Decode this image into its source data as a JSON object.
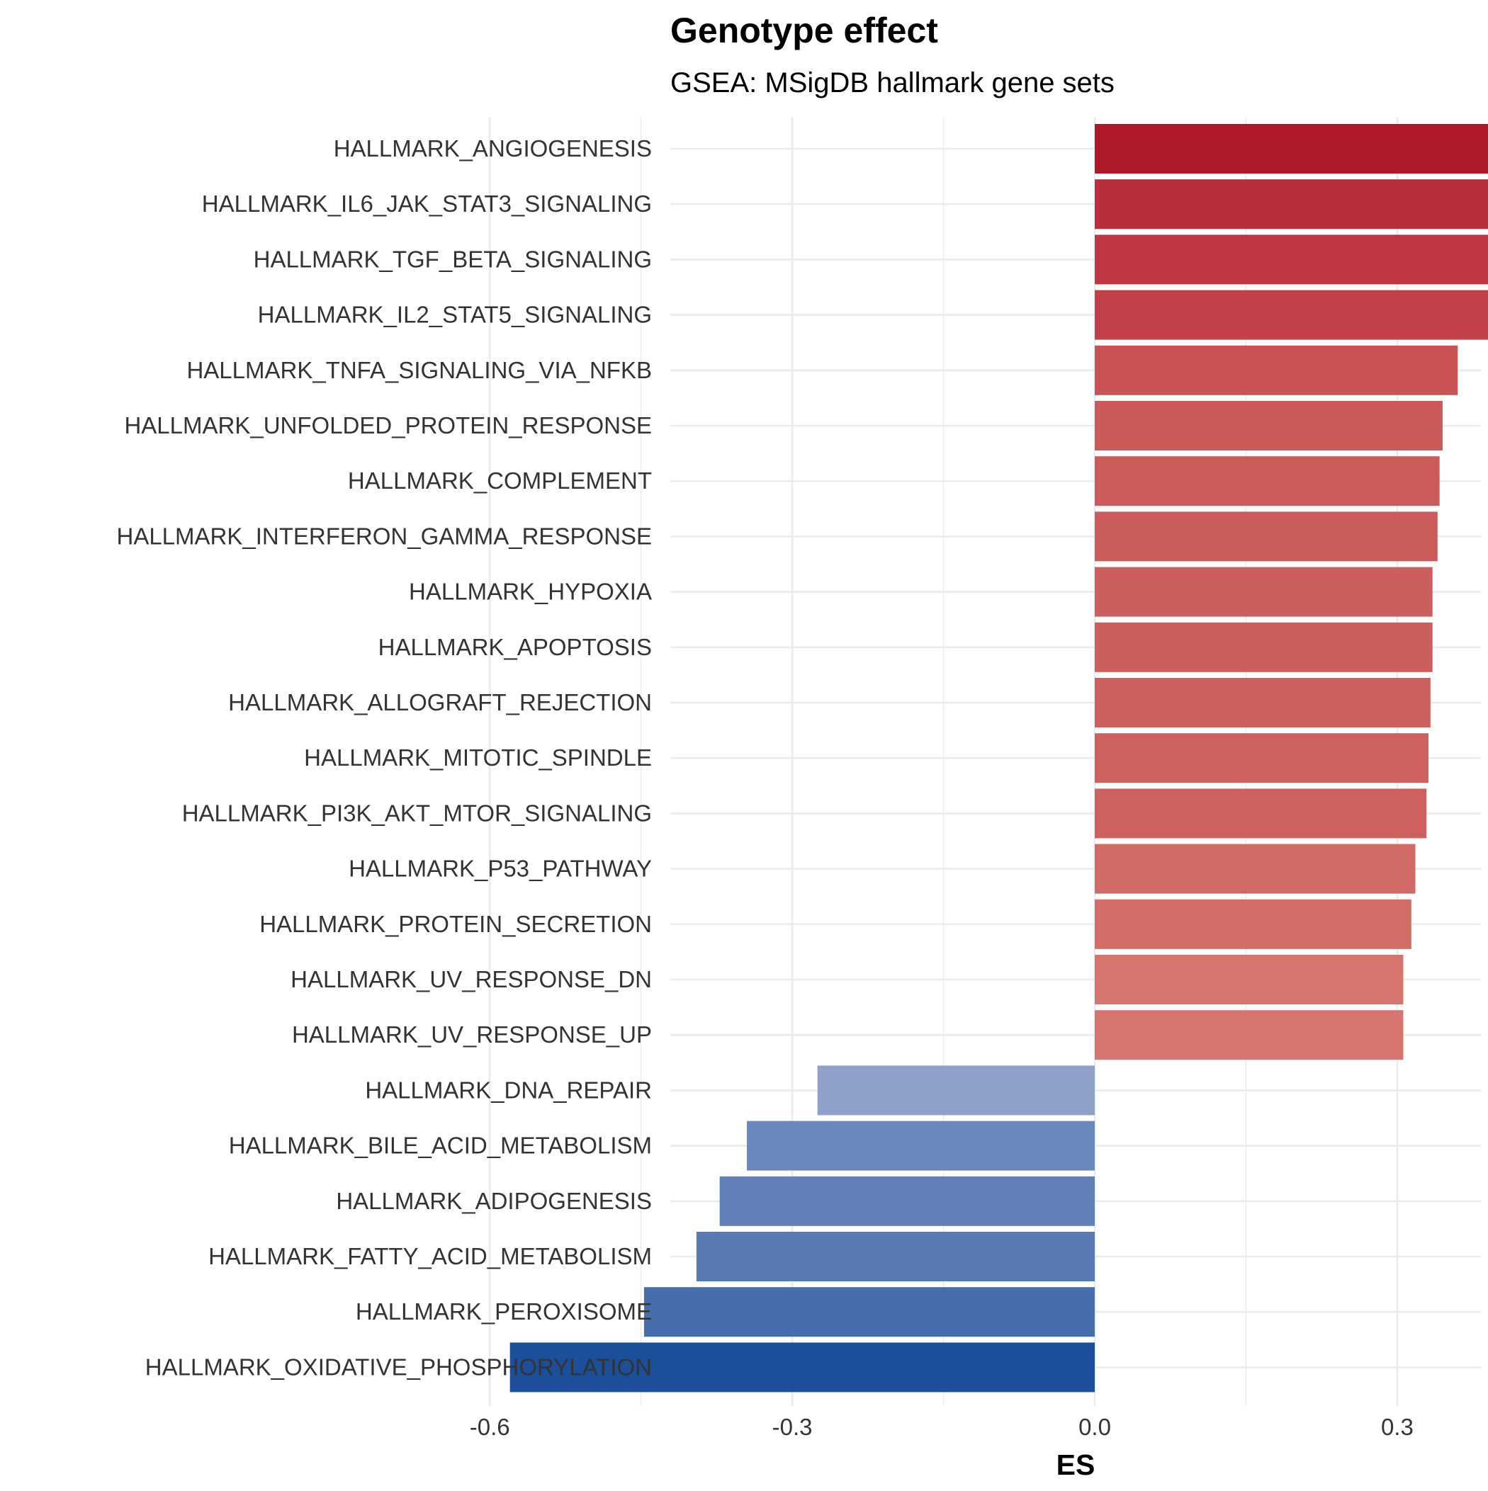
{
  "chart_data": {
    "type": "bar",
    "orientation": "horizontal",
    "title": "Genotype effect",
    "subtitle": "GSEA: MSigDB hallmark gene sets",
    "xlabel": "ES",
    "ylabel": "",
    "xlim": [
      -0.63,
      0.57
    ],
    "x_ticks": [
      -0.6,
      -0.3,
      0.0,
      0.3
    ],
    "x_tick_labels": [
      "-0.6",
      "-0.3",
      "0.0",
      "0.3"
    ],
    "grid": true,
    "legend": "none",
    "colors": {
      "positive_strong": "#B2182B",
      "positive_weak": "#D6756D",
      "negative_weak": "#8FA1CB",
      "negative_strong": "#1B4F9A",
      "grid": "#EBEBEB"
    },
    "categories": [
      "HALLMARK_ANGIOGENESIS",
      "HALLMARK_IL6_JAK_STAT3_SIGNALING",
      "HALLMARK_TGF_BETA_SIGNALING",
      "HALLMARK_IL2_STAT5_SIGNALING",
      "HALLMARK_TNFA_SIGNALING_VIA_NFKB",
      "HALLMARK_UNFOLDED_PROTEIN_RESPONSE",
      "HALLMARK_COMPLEMENT",
      "HALLMARK_INTERFERON_GAMMA_RESPONSE",
      "HALLMARK_HYPOXIA",
      "HALLMARK_APOPTOSIS",
      "HALLMARK_ALLOGRAFT_REJECTION",
      "HALLMARK_MITOTIC_SPINDLE",
      "HALLMARK_PI3K_AKT_MTOR_SIGNALING",
      "HALLMARK_P53_PATHWAY",
      "HALLMARK_PROTEIN_SECRETION",
      "HALLMARK_UV_RESPONSE_DN",
      "HALLMARK_UV_RESPONSE_UP",
      "HALLMARK_DNA_REPAIR",
      "HALLMARK_BILE_ACID_METABOLISM",
      "HALLMARK_ADIPOGENESIS",
      "HALLMARK_FATTY_ACID_METABOLISM",
      "HALLMARK_PEROXISOME",
      "HALLMARK_OXIDATIVE_PHOSPHORYLATION"
    ],
    "values": [
      0.52,
      0.455,
      0.43,
      0.4,
      0.36,
      0.345,
      0.342,
      0.34,
      0.335,
      0.335,
      0.333,
      0.331,
      0.329,
      0.318,
      0.314,
      0.306,
      0.306,
      -0.275,
      -0.345,
      -0.372,
      -0.395,
      -0.447,
      -0.58
    ]
  }
}
